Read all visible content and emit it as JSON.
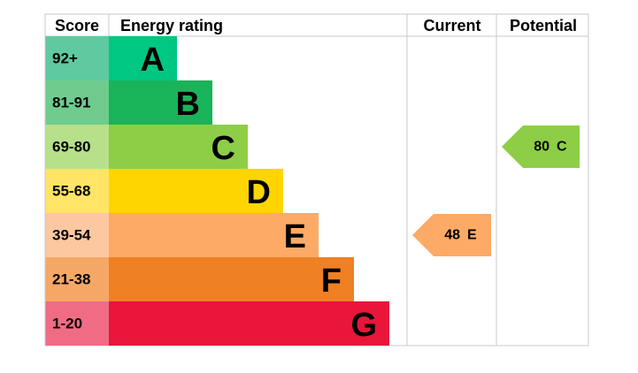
{
  "header": {
    "score": "Score",
    "rating": "Energy rating",
    "current": "Current",
    "potential": "Potential"
  },
  "bands": [
    {
      "score": "92+",
      "letter": "A",
      "color": "#00c781",
      "light": "#5fc9a0"
    },
    {
      "score": "81-91",
      "letter": "B",
      "color": "#19b459",
      "light": "#6fcc8e"
    },
    {
      "score": "69-80",
      "letter": "C",
      "color": "#8dce46",
      "light": "#b7e08b"
    },
    {
      "score": "55-68",
      "letter": "D",
      "color": "#ffd500",
      "light": "#ffe466"
    },
    {
      "score": "39-54",
      "letter": "E",
      "color": "#fcaa65",
      "light": "#fdc8a0"
    },
    {
      "score": "21-38",
      "letter": "F",
      "color": "#ef8023",
      "light": "#f5a866"
    },
    {
      "score": "1-20",
      "letter": "G",
      "color": "#e9153b",
      "light": "#f06c84"
    }
  ],
  "current": {
    "score": 48,
    "letter": "E"
  },
  "potential": {
    "score": 80,
    "letter": "C"
  }
}
